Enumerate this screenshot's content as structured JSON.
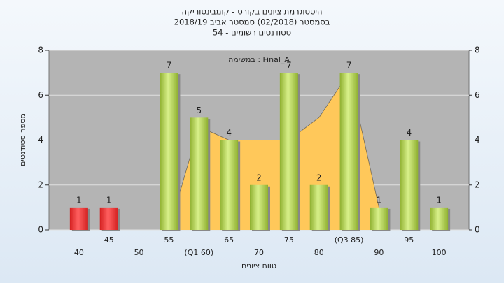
{
  "chart_data": {
    "type": "bar",
    "title": [
      "היסטוגרמת ציונים בקורס - קומבינטוריקה",
      "בסמסטר  (02/2018)  סמסטר אביב 2018/19",
      "סטודנטים רשומים - 54"
    ],
    "x_label": "טווח ציונים",
    "y_label": "מספר סטודנטים",
    "categories": [
      "40",
      "45",
      "50",
      "55",
      "(Q1 60)",
      "65",
      "70",
      "75",
      "80",
      "(Q3 85)",
      "90",
      "95",
      "100"
    ],
    "values": [
      1,
      1,
      null,
      7,
      5,
      4,
      2,
      7,
      2,
      7,
      1,
      4,
      1
    ],
    "colors": [
      "#d42020",
      "#d42020",
      null,
      "#8fb030",
      "#8fb030",
      "#8fb030",
      "#8fb030",
      "#8fb030",
      "#8fb030",
      "#8fb030",
      "#8fb030",
      "#8fb030",
      "#8fb030"
    ],
    "overlay": {
      "type": "area",
      "name": "Final_A : במשימה",
      "color": "#ffc85a",
      "line_color": "#333333",
      "values": [
        null,
        null,
        null,
        0,
        4.6,
        4,
        4,
        4,
        5,
        7,
        1,
        null,
        null
      ]
    },
    "ylim": [
      0,
      8
    ],
    "yticks": [
      0,
      2,
      4,
      6,
      8
    ],
    "y2lim": [
      0,
      8
    ],
    "y2ticks": [
      0,
      2,
      4,
      6,
      8
    ],
    "grid": true
  }
}
